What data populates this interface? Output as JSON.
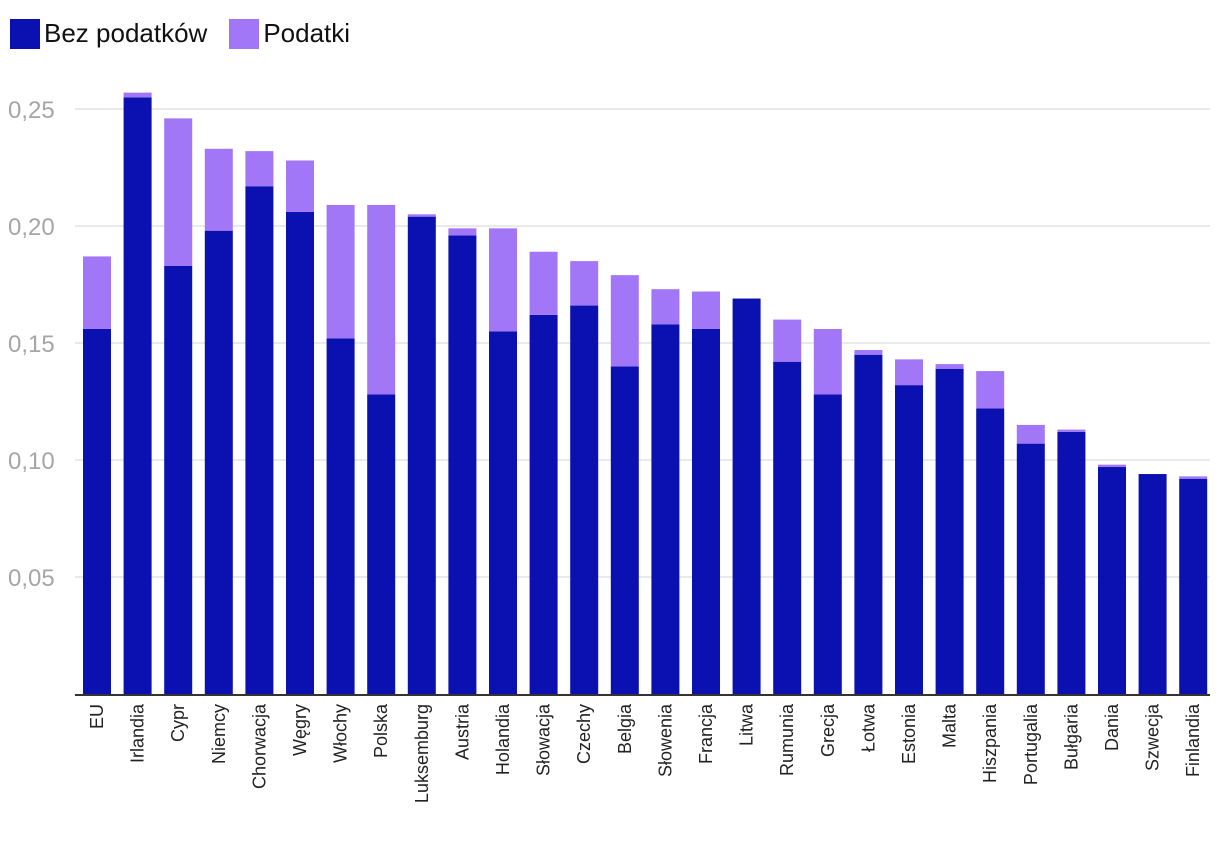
{
  "colors": {
    "base": "#0a11b0",
    "tax": "#a277f7",
    "grid": "#e3e3e3",
    "axis": "#333333"
  },
  "legend": [
    {
      "label": "Bez podatków",
      "color": "#0a11b0"
    },
    {
      "label": "Podatki",
      "color": "#a277f7"
    }
  ],
  "chart_data": {
    "type": "bar",
    "stacked": true,
    "orientation": "vertical",
    "title": "",
    "xlabel": "",
    "ylabel": "",
    "ylim": [
      0,
      0.25
    ],
    "yticks": [
      0.05,
      0.1,
      0.15,
      0.2,
      0.25
    ],
    "ytick_labels": [
      "0,05",
      "0,10",
      "0,15",
      "0,20",
      "0,25"
    ],
    "grid": true,
    "legend_position": "top-left",
    "categories": [
      "EU",
      "Irlandia",
      "Cypr",
      "Niemcy",
      "Chorwacja",
      "Węgry",
      "Włochy",
      "Polska",
      "Luksemburg",
      "Austria",
      "Holandia",
      "Słowacja",
      "Czechy",
      "Belgia",
      "Słowenia",
      "Francja",
      "Litwa",
      "Rumunia",
      "Grecja",
      "Łotwa",
      "Estonia",
      "Malta",
      "Hiszpania",
      "Portugalia",
      "Bułgaria",
      "Dania",
      "Szwecja",
      "Finlandia"
    ],
    "series": [
      {
        "name": "Bez podatków",
        "values": [
          0.156,
          0.255,
          0.183,
          0.198,
          0.217,
          0.206,
          0.152,
          0.128,
          0.204,
          0.196,
          0.155,
          0.162,
          0.166,
          0.14,
          0.158,
          0.156,
          0.169,
          0.142,
          0.128,
          0.145,
          0.132,
          0.139,
          0.122,
          0.107,
          0.112,
          0.097,
          0.094,
          0.092
        ]
      },
      {
        "name": "Podatki",
        "values": [
          0.031,
          0.002,
          0.063,
          0.035,
          0.015,
          0.022,
          0.057,
          0.081,
          0.001,
          0.003,
          0.044,
          0.027,
          0.019,
          0.039,
          0.015,
          0.016,
          0.0,
          0.018,
          0.028,
          0.002,
          0.011,
          0.002,
          0.016,
          0.008,
          0.001,
          0.001,
          0.0,
          0.001
        ]
      }
    ]
  }
}
